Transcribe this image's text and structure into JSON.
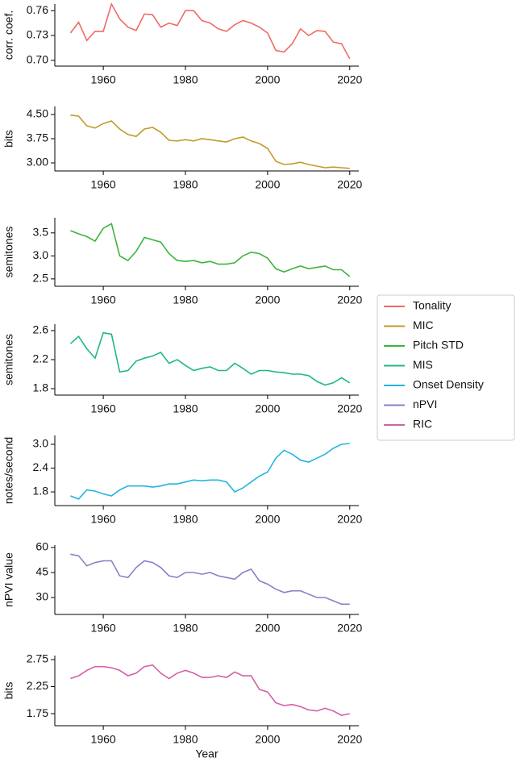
{
  "chart_data": [
    {
      "type": "line",
      "ylabel": "corr. coef.",
      "x": [
        1952,
        1954,
        1956,
        1958,
        1960,
        1962,
        1964,
        1966,
        1968,
        1970,
        1972,
        1974,
        1976,
        1978,
        1980,
        1982,
        1984,
        1986,
        1988,
        1990,
        1992,
        1994,
        1996,
        1998,
        2000,
        2002,
        2004,
        2006,
        2008,
        2010,
        2012,
        2014,
        2016,
        2018,
        2020
      ],
      "series": [
        {
          "name": "Tonality",
          "color": "#f06a66",
          "values": [
            0.733,
            0.746,
            0.724,
            0.735,
            0.735,
            0.768,
            0.75,
            0.74,
            0.736,
            0.756,
            0.755,
            0.74,
            0.745,
            0.742,
            0.76,
            0.76,
            0.748,
            0.745,
            0.738,
            0.735,
            0.743,
            0.748,
            0.745,
            0.74,
            0.733,
            0.712,
            0.71,
            0.72,
            0.738,
            0.73,
            0.736,
            0.735,
            0.722,
            0.72,
            0.702
          ]
        }
      ],
      "xlim": [
        1948.2,
        2022.2
      ],
      "xticks": [
        1960,
        1980,
        2000,
        2020
      ],
      "ylim": [
        0.693,
        0.768
      ],
      "yticks": [
        {
          "value": 0.7,
          "label": "0.70"
        },
        0.73,
        0.76
      ]
    },
    {
      "type": "line",
      "ylabel": "bits",
      "x": [
        1952,
        1954,
        1956,
        1958,
        1960,
        1962,
        1964,
        1966,
        1968,
        1970,
        1972,
        1974,
        1976,
        1978,
        1980,
        1982,
        1984,
        1986,
        1988,
        1990,
        1992,
        1994,
        1996,
        1998,
        2000,
        2002,
        2004,
        2006,
        2008,
        2010,
        2012,
        2014,
        2016,
        2018,
        2020
      ],
      "series": [
        {
          "name": "MIC",
          "color": "#c49a2a",
          "values": [
            4.48,
            4.45,
            4.15,
            4.08,
            4.22,
            4.3,
            4.05,
            3.88,
            3.82,
            4.05,
            4.1,
            3.95,
            3.7,
            3.68,
            3.72,
            3.68,
            3.75,
            3.72,
            3.68,
            3.65,
            3.75,
            3.8,
            3.68,
            3.6,
            3.45,
            3.05,
            2.95,
            2.97,
            3.02,
            2.95,
            2.9,
            2.85,
            2.87,
            2.85,
            2.83
          ]
        }
      ],
      "xlim": [
        1948.2,
        2022.2
      ],
      "xticks": [
        1960,
        1980,
        2000,
        2020
      ],
      "ylim": [
        2.75,
        4.75
      ],
      "yticks": [
        {
          "value": 3,
          "label": "3.00"
        },
        3.75,
        {
          "value": 4.5,
          "label": "4.50"
        }
      ]
    },
    {
      "type": "line",
      "ylabel": "semitones",
      "x": [
        1952,
        1954,
        1956,
        1958,
        1960,
        1962,
        1964,
        1966,
        1968,
        1970,
        1972,
        1974,
        1976,
        1978,
        1980,
        1982,
        1984,
        1986,
        1988,
        1990,
        1992,
        1994,
        1996,
        1998,
        2000,
        2002,
        2004,
        2006,
        2008,
        2010,
        2012,
        2014,
        2016,
        2018,
        2020
      ],
      "series": [
        {
          "name": "Pitch STD",
          "color": "#3cb43c",
          "values": [
            3.55,
            3.48,
            3.42,
            3.32,
            3.6,
            3.7,
            3.0,
            2.9,
            3.1,
            3.4,
            3.35,
            3.3,
            3.05,
            2.9,
            2.88,
            2.9,
            2.85,
            2.88,
            2.82,
            2.82,
            2.85,
            3.0,
            3.08,
            3.05,
            2.95,
            2.72,
            2.65,
            2.72,
            2.78,
            2.72,
            2.75,
            2.78,
            2.7,
            2.7,
            2.55
          ]
        }
      ],
      "xlim": [
        1948.2,
        2022.2
      ],
      "xticks": [
        1960,
        1980,
        2000,
        2020
      ],
      "ylim": [
        2.34,
        3.83
      ],
      "yticks": [
        2.5,
        {
          "value": 3,
          "label": "3.0"
        },
        3.5
      ]
    },
    {
      "type": "line",
      "ylabel": "semitones",
      "x": [
        1952,
        1954,
        1956,
        1958,
        1960,
        1962,
        1964,
        1966,
        1968,
        1970,
        1972,
        1974,
        1976,
        1978,
        1980,
        1982,
        1984,
        1986,
        1988,
        1990,
        1992,
        1994,
        1996,
        1998,
        2000,
        2002,
        2004,
        2006,
        2008,
        2010,
        2012,
        2014,
        2016,
        2018,
        2020
      ],
      "series": [
        {
          "name": "MIS",
          "color": "#20b68c",
          "values": [
            2.42,
            2.52,
            2.35,
            2.22,
            2.57,
            2.55,
            2.03,
            2.05,
            2.18,
            2.22,
            2.25,
            2.3,
            2.15,
            2.2,
            2.12,
            2.05,
            2.08,
            2.1,
            2.05,
            2.05,
            2.15,
            2.08,
            2.0,
            2.05,
            2.05,
            2.03,
            2.02,
            2.0,
            2.0,
            1.98,
            1.9,
            1.85,
            1.88,
            1.95,
            1.88
          ]
        }
      ],
      "xlim": [
        1948.2,
        2022.2
      ],
      "xticks": [
        1960,
        1980,
        2000,
        2020
      ],
      "ylim": [
        1.711,
        2.689
      ],
      "yticks": [
        1.8,
        2.2,
        2.6
      ]
    },
    {
      "type": "line",
      "ylabel": "notes/second",
      "x": [
        1952,
        1954,
        1956,
        1958,
        1960,
        1962,
        1964,
        1966,
        1968,
        1970,
        1972,
        1974,
        1976,
        1978,
        1980,
        1982,
        1984,
        1986,
        1988,
        1990,
        1992,
        1994,
        1996,
        1998,
        2000,
        2002,
        2004,
        2006,
        2008,
        2010,
        2012,
        2014,
        2016,
        2018,
        2020
      ],
      "series": [
        {
          "name": "Onset Density",
          "color": "#22b5e0",
          "values": [
            1.7,
            1.62,
            1.85,
            1.82,
            1.75,
            1.7,
            1.85,
            1.95,
            1.95,
            1.95,
            1.92,
            1.95,
            2.0,
            2.0,
            2.05,
            2.1,
            2.08,
            2.1,
            2.1,
            2.05,
            1.8,
            1.9,
            2.05,
            2.2,
            2.3,
            2.65,
            2.85,
            2.75,
            2.6,
            2.55,
            2.65,
            2.75,
            2.9,
            3.0,
            3.02
          ]
        }
      ],
      "xlim": [
        1948.2,
        2022.2
      ],
      "xticks": [
        1960,
        1980,
        2000,
        2020
      ],
      "ylim": [
        1.455,
        3.224
      ],
      "yticks": [
        1.8,
        2.4,
        {
          "value": 3,
          "label": "3.0"
        }
      ]
    },
    {
      "type": "line",
      "ylabel": "nPVI value",
      "x": [
        1952,
        1954,
        1956,
        1958,
        1960,
        1962,
        1964,
        1966,
        1968,
        1970,
        1972,
        1974,
        1976,
        1978,
        1980,
        1982,
        1984,
        1986,
        1988,
        1990,
        1992,
        1994,
        1996,
        1998,
        2000,
        2002,
        2004,
        2006,
        2008,
        2010,
        2012,
        2014,
        2016,
        2018,
        2020
      ],
      "series": [
        {
          "name": "nPVI",
          "color": "#8c7fc8",
          "values": [
            56,
            55,
            49,
            51,
            52,
            52,
            43,
            42,
            48,
            52,
            51,
            48,
            43,
            42,
            45,
            45,
            44,
            45,
            43,
            42,
            41,
            45,
            47,
            40,
            38,
            35,
            33,
            34,
            34,
            32,
            30,
            30,
            28,
            26,
            26
          ]
        }
      ],
      "xlim": [
        1948.2,
        2022.2
      ],
      "xticks": [
        1960,
        1980,
        2000,
        2020
      ],
      "ylim": [
        19.84,
        61.45
      ],
      "yticks": [
        30,
        45,
        60
      ]
    },
    {
      "type": "line",
      "ylabel": "bits",
      "xlabel": "Year",
      "x": [
        1952,
        1954,
        1956,
        1958,
        1960,
        1962,
        1964,
        1966,
        1968,
        1970,
        1972,
        1974,
        1976,
        1978,
        1980,
        1982,
        1984,
        1986,
        1988,
        1990,
        1992,
        1994,
        1996,
        1998,
        2000,
        2002,
        2004,
        2006,
        2008,
        2010,
        2012,
        2014,
        2016,
        2018,
        2020
      ],
      "series": [
        {
          "name": "RIC",
          "color": "#d460a8",
          "values": [
            2.4,
            2.45,
            2.55,
            2.62,
            2.62,
            2.6,
            2.55,
            2.45,
            2.5,
            2.62,
            2.65,
            2.5,
            2.4,
            2.5,
            2.55,
            2.5,
            2.42,
            2.42,
            2.45,
            2.42,
            2.52,
            2.45,
            2.45,
            2.2,
            2.15,
            1.95,
            1.9,
            1.92,
            1.88,
            1.82,
            1.8,
            1.85,
            1.8,
            1.72,
            1.75
          ]
        }
      ],
      "xlim": [
        1948.2,
        2022.2
      ],
      "xticks": [
        1960,
        1980,
        2000,
        2020
      ],
      "ylim": [
        1.527,
        2.825
      ],
      "yticks": [
        1.75,
        2.25,
        2.75
      ]
    }
  ]
}
